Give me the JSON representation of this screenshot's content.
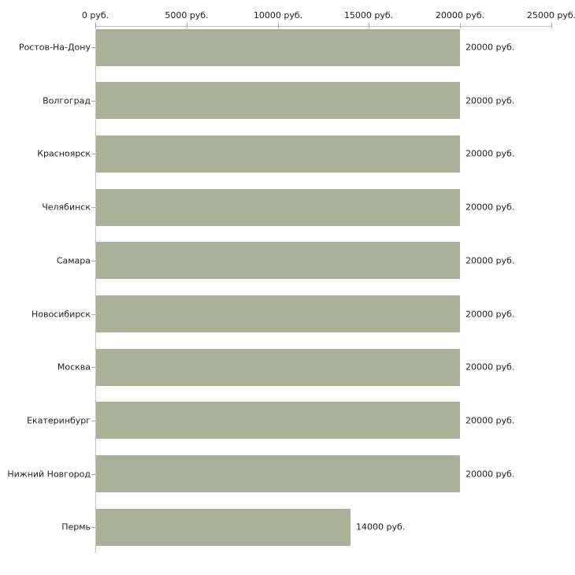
{
  "chart_data": {
    "type": "bar",
    "orientation": "horizontal",
    "title": "",
    "categories": [
      "Ростов-На-Дону",
      "Волгоград",
      "Красноярск",
      "Челябинск",
      "Самара",
      "Новосибирск",
      "Москва",
      "Екатеринбург",
      "Нижний Новгород",
      "Пермь"
    ],
    "values": [
      20000,
      20000,
      20000,
      20000,
      20000,
      20000,
      20000,
      20000,
      20000,
      14000
    ],
    "value_labels": [
      "20000 руб.",
      "20000 руб.",
      "20000 руб.",
      "20000 руб.",
      "20000 руб.",
      "20000 руб.",
      "20000 руб.",
      "20000 руб.",
      "20000 руб.",
      "14000 руб."
    ],
    "x_axis": {
      "position": "top",
      "xlim": [
        0,
        25000
      ],
      "ticks": [
        {
          "value": 0,
          "label": "0 руб."
        },
        {
          "value": 5000,
          "label": "5000 руб."
        },
        {
          "value": 10000,
          "label": "10000 руб."
        },
        {
          "value": 15000,
          "label": "15000 руб."
        },
        {
          "value": 20000,
          "label": "20000 руб."
        },
        {
          "value": 25000,
          "label": "25000 руб."
        }
      ]
    },
    "grid": false,
    "legend": null,
    "colors": {
      "bar": "#abb199",
      "axis_line": "#c6c6c6",
      "tick_mark": "#b3b38c",
      "text": "#1f1f1f",
      "background": "#ffffff"
    }
  }
}
